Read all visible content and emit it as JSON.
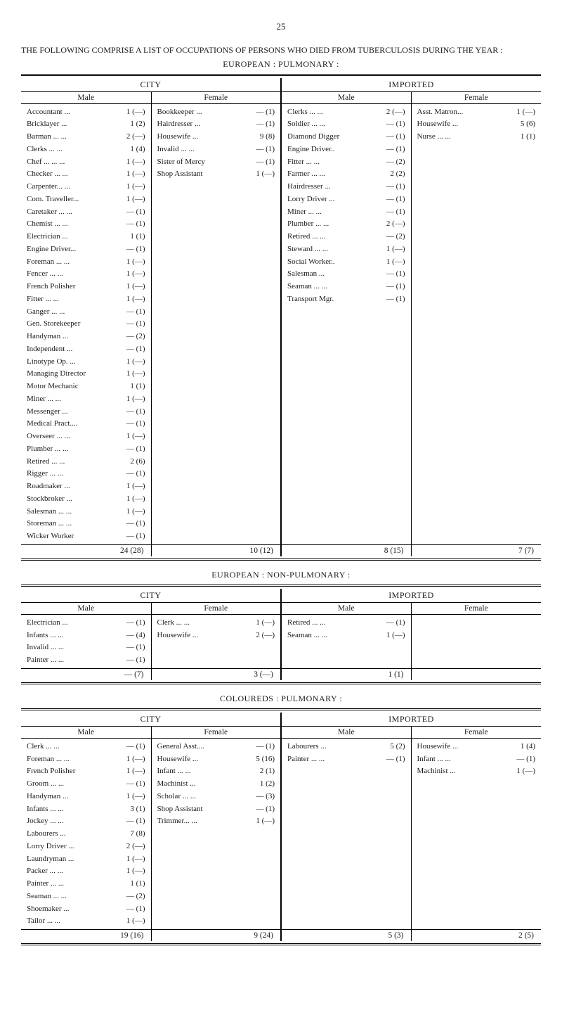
{
  "page_number": "25",
  "heading": "THE FOLLOWING COMPRISE A LIST OF OCCUPATIONS OF PERSONS WHO DIED FROM TUBERCULOSIS DURING THE YEAR :",
  "sections": [
    {
      "title": "EUROPEAN : PULMONARY :",
      "city": {
        "label": "CITY",
        "male": {
          "label": "Male",
          "rows": [
            [
              "Accountant ...",
              "1 (—)"
            ],
            [
              "Bricklayer ...",
              "1 (2)"
            ],
            [
              "Barman ... ...",
              "2 (—)"
            ],
            [
              "Clerks ... ...",
              "1 (4)"
            ],
            [
              "Chef ... ... ...",
              "1 (—)"
            ],
            [
              "Checker ... ...",
              "1 (—)"
            ],
            [
              "Carpenter... ...",
              "1 (—)"
            ],
            [
              "Com. Traveller...",
              "1 (—)"
            ],
            [
              "Caretaker ... ...",
              "— (1)"
            ],
            [
              "Chemist ... ...",
              "— (1)"
            ],
            [
              "Electrician ...",
              "1 (1)"
            ],
            [
              "Engine Driver...",
              "— (1)"
            ],
            [
              "Foreman ... ...",
              "1 (—)"
            ],
            [
              "Fencer ... ...",
              "1 (—)"
            ],
            [
              "French Polisher",
              "1 (—)"
            ],
            [
              "Fitter ... ...",
              "1 (—)"
            ],
            [
              "Ganger ... ...",
              "— (1)"
            ],
            [
              "Gen. Storekeeper",
              "— (1)"
            ],
            [
              "Handyman ...",
              "— (2)"
            ],
            [
              "Independent ...",
              "— (1)"
            ],
            [
              "Linotype Op. ...",
              "1 (—)"
            ],
            [
              "Managing Director",
              "1 (—)"
            ],
            [
              "Motor Mechanic",
              "1 (1)"
            ],
            [
              "Miner ... ...",
              "1 (—)"
            ],
            [
              "Messenger ...",
              "— (1)"
            ],
            [
              "Medical Pract....",
              "— (1)"
            ],
            [
              "Overseer ... ...",
              "1 (—)"
            ],
            [
              "Plumber ... ...",
              "— (1)"
            ],
            [
              "Retired ... ...",
              "2 (6)"
            ],
            [
              "Rigger ... ...",
              "— (1)"
            ],
            [
              "Roadmaker ...",
              "1 (—)"
            ],
            [
              "Stockbroker ...",
              "1 (—)"
            ],
            [
              "Salesman ... ...",
              "1 (—)"
            ],
            [
              "Storeman ... ...",
              "— (1)"
            ],
            [
              "Wicker Worker",
              "— (1)"
            ]
          ],
          "total": "24 (28)"
        },
        "female": {
          "label": "Female",
          "rows": [
            [
              "Bookkeeper ...",
              "— (1)"
            ],
            [
              "Hairdresser ...",
              "— (1)"
            ],
            [
              "Housewife ...",
              "9 (8)"
            ],
            [
              "Invalid ... ...",
              "— (1)"
            ],
            [
              "Sister of Mercy",
              "— (1)"
            ],
            [
              "Shop Assistant",
              "1 (—)"
            ]
          ],
          "total": "10 (12)"
        }
      },
      "imported": {
        "label": "IMPORTED",
        "male": {
          "label": "Male",
          "rows": [
            [
              "Clerks ... ...",
              "2 (—)"
            ],
            [
              "Soldier ... ...",
              "— (1)"
            ],
            [
              "Diamond Digger",
              "— (1)"
            ],
            [
              "Engine Driver..",
              "— (1)"
            ],
            [
              "Fitter ... ...",
              "— (2)"
            ],
            [
              "Farmer ... ...",
              "2 (2)"
            ],
            [
              "Hairdresser ...",
              "— (1)"
            ],
            [
              "Lorry Driver ...",
              "— (1)"
            ],
            [
              "Miner ... ...",
              "— (1)"
            ],
            [
              "Plumber ... ...",
              "2 (—)"
            ],
            [
              "Retired ... ...",
              "— (2)"
            ],
            [
              "Steward ... ...",
              "1 (—)"
            ],
            [
              "Social Worker..",
              "1 (—)"
            ],
            [
              "Salesman ...",
              "— (1)"
            ],
            [
              "Seaman ... ...",
              "— (1)"
            ],
            [
              "Transport Mgr.",
              "— (1)"
            ]
          ],
          "total": "8 (15)"
        },
        "female": {
          "label": "Female",
          "rows": [
            [
              "Asst. Matron...",
              "1 (—)"
            ],
            [
              "Housewife ...",
              "5 (6)"
            ],
            [
              "Nurse ... ...",
              "1 (1)"
            ]
          ],
          "total": "7 (7)"
        }
      }
    },
    {
      "title": "EUROPEAN : NON-PULMONARY :",
      "city": {
        "label": "CITY",
        "male": {
          "label": "Male",
          "rows": [
            [
              "Electrician ...",
              "— (1)"
            ],
            [
              "Infants ... ...",
              "— (4)"
            ],
            [
              "Invalid ... ...",
              "— (1)"
            ],
            [
              "Painter ... ...",
              "— (1)"
            ]
          ],
          "total": "— (7)"
        },
        "female": {
          "label": "Female",
          "rows": [
            [
              "Clerk ... ...",
              "1 (—)"
            ],
            [
              "Housewife ...",
              "2 (—)"
            ]
          ],
          "total": "3 (—)"
        }
      },
      "imported": {
        "label": "IMPORTED",
        "male": {
          "label": "Male",
          "rows": [
            [
              "Retired ... ...",
              "— (1)"
            ],
            [
              "Seaman ... ...",
              "1 (—)"
            ]
          ],
          "total": "1 (1)"
        },
        "female": {
          "label": "Female",
          "rows": [],
          "total": ""
        }
      }
    },
    {
      "title": "COLOUREDS : PULMONARY :",
      "city": {
        "label": "CITY",
        "male": {
          "label": "Male",
          "rows": [
            [
              "Clerk ... ...",
              "— (1)"
            ],
            [
              "Foreman ... ...",
              "1 (—)"
            ],
            [
              "French Polisher",
              "1 (—)"
            ],
            [
              "Groom ... ...",
              "— (1)"
            ],
            [
              "Handyman ...",
              "1 (—)"
            ],
            [
              "Infants ... ...",
              "3 (1)"
            ],
            [
              "Jockey ... ...",
              "— (1)"
            ],
            [
              "Labourers ...",
              "7 (8)"
            ],
            [
              "Lorry Driver ...",
              "2 (—)"
            ],
            [
              "Laundryman ...",
              "1 (—)"
            ],
            [
              "Packer ... ...",
              "1 (—)"
            ],
            [
              "Painter ... ...",
              "1 (1)"
            ],
            [
              "Seaman ... ...",
              "— (2)"
            ],
            [
              "Shoemaker ...",
              "— (1)"
            ],
            [
              "Tailor ... ...",
              "1 (—)"
            ]
          ],
          "total": "19 (16)"
        },
        "female": {
          "label": "Female",
          "rows": [
            [
              "General Asst....",
              "— (1)"
            ],
            [
              "Housewife ...",
              "5 (16)"
            ],
            [
              "Infant ... ...",
              "2 (1)"
            ],
            [
              "Machinist ...",
              "1 (2)"
            ],
            [
              "Scholar ... ...",
              "— (3)"
            ],
            [
              "Shop Assistant",
              "— (1)"
            ],
            [
              "Trimmer... ...",
              "1 (—)"
            ]
          ],
          "total": "9 (24)"
        }
      },
      "imported": {
        "label": "IMPORTED",
        "male": {
          "label": "Male",
          "rows": [
            [
              "Labourers ...",
              "5 (2)"
            ],
            [
              "Painter ... ...",
              "— (1)"
            ]
          ],
          "total": "5 (3)"
        },
        "female": {
          "label": "Female",
          "rows": [
            [
              "Housewife ...",
              "1 (4)"
            ],
            [
              "Infant ... ...",
              "— (1)"
            ],
            [
              "Machinist ...",
              "1 (—)"
            ]
          ],
          "total": "2 (5)"
        }
      }
    }
  ]
}
